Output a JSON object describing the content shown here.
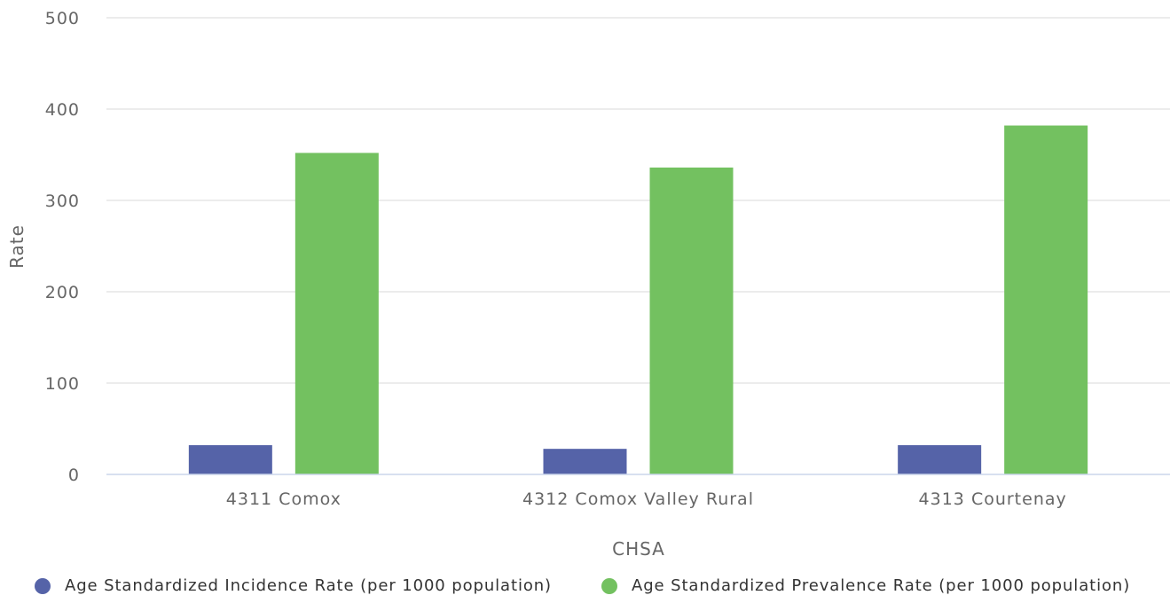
{
  "chart_data": {
    "type": "bar",
    "title": "",
    "xlabel": "CHSA",
    "ylabel": "Rate",
    "ylim": [
      0,
      500
    ],
    "yticks": [
      0,
      100,
      200,
      300,
      400,
      500
    ],
    "grid": true,
    "legend_position": "bottom",
    "categories": [
      "4311 Comox",
      "4312 Comox Valley Rural",
      "4313 Courtenay"
    ],
    "series": [
      {
        "name": "Age Standardized Incidence Rate (per 1000 population)",
        "color": "#5563a8",
        "values": [
          32,
          28,
          32
        ]
      },
      {
        "name": "Age Standardized Prevalence Rate (per 1000 population)",
        "color": "#73c160",
        "values": [
          352,
          336,
          382
        ]
      }
    ]
  }
}
